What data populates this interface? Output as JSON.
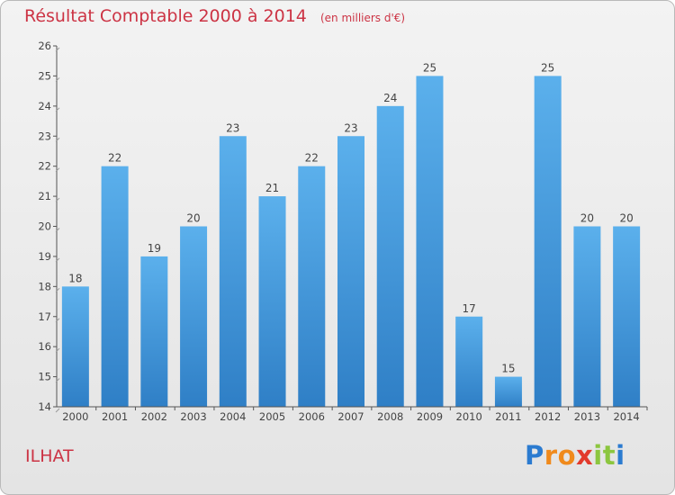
{
  "title": "Résultat Comptable 2000 à 2014",
  "unit": "(en milliers d'€)",
  "commune": "ILHAT",
  "logo": {
    "letters": [
      {
        "ch": "P",
        "color": "#2b7bd0"
      },
      {
        "ch": "r",
        "color": "#f08a1c"
      },
      {
        "ch": "o",
        "color": "#f08a1c"
      },
      {
        "ch": "x",
        "color": "#e23a2c"
      },
      {
        "ch": "i",
        "color": "#8cc63f"
      },
      {
        "ch": "t",
        "color": "#8cc63f"
      },
      {
        "ch": "i",
        "color": "#2b7bd0"
      }
    ]
  },
  "colors": {
    "title": "#cc3344",
    "bar_light": "#5bb0ec",
    "bar_dark": "#2f7fc6",
    "axis": "#555555"
  },
  "chart_data": {
    "type": "bar",
    "title": "Résultat Comptable 2000 à 2014",
    "subtitle": "(en milliers d'€)",
    "categories": [
      "2000",
      "2001",
      "2002",
      "2003",
      "2004",
      "2005",
      "2006",
      "2007",
      "2008",
      "2009",
      "2010",
      "2011",
      "2012",
      "2013",
      "2014"
    ],
    "values": [
      18,
      22,
      19,
      20,
      23,
      21,
      22,
      23,
      24,
      25,
      17,
      15,
      25,
      20,
      20
    ],
    "ylim": [
      14,
      26
    ],
    "yticks": [
      14,
      15,
      16,
      17,
      18,
      19,
      20,
      21,
      22,
      23,
      24,
      25,
      26
    ],
    "grid": false,
    "legend": "none"
  }
}
